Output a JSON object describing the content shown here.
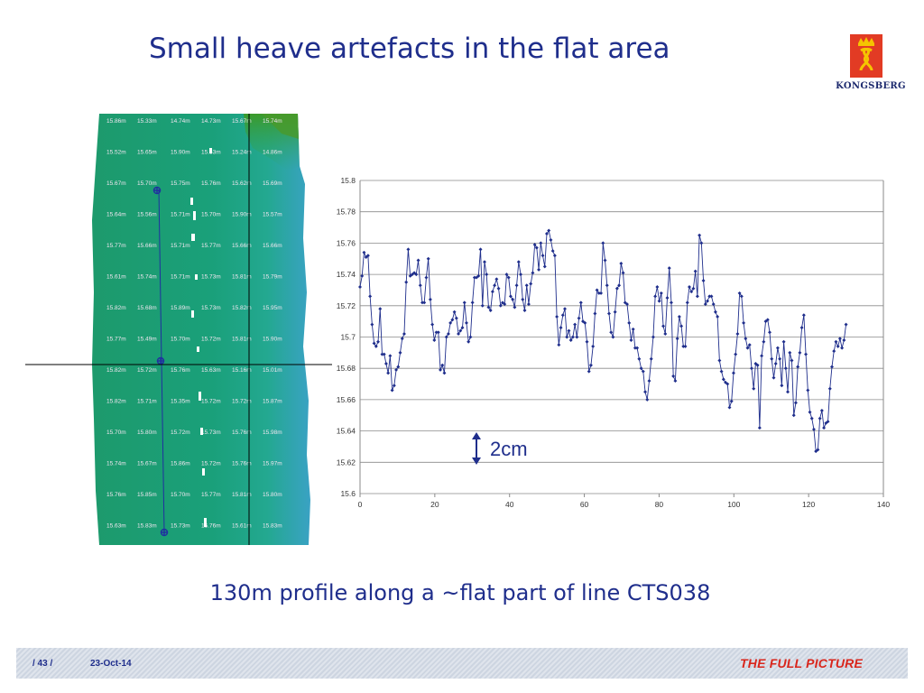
{
  "slide": {
    "title": "Small heave artefacts in the flat area",
    "caption": "130m profile along a ~flat part of line CTS038",
    "logo_text": "KONGSBERG",
    "brand_color": "#e23b24",
    "accent_color": "#1f2e8c"
  },
  "footer": {
    "page": "/ 43 /",
    "date": "23-Oct-14",
    "tagline": "THE FULL PICTURE"
  },
  "map": {
    "labels": [
      [
        "15.86m",
        "15.33m",
        "14.74m",
        "14.73m",
        "15.67m",
        "15.74m"
      ],
      [
        "15.52m",
        "15.65m",
        "15.90m",
        "15.53m",
        "15.24m",
        "14.86m"
      ],
      [
        "15.67m",
        "15.70m",
        "15.75m",
        "15.76m",
        "15.62m",
        "15.69m"
      ],
      [
        "15.64m",
        "15.56m",
        "15.71m",
        "15.70m",
        "15.90m",
        "15.57m"
      ],
      [
        "15.77m",
        "15.66m",
        "15.71m",
        "15.77m",
        "15.66m",
        "15.66m"
      ],
      [
        "15.61m",
        "15.74m",
        "15.71m",
        "15.73m",
        "15.81m",
        "15.79m"
      ],
      [
        "15.82m",
        "15.68m",
        "15.89m",
        "15.73m",
        "15.82m",
        "15.95m"
      ],
      [
        "15.77m",
        "15.49m",
        "15.70m",
        "15.72m",
        "15.81m",
        "15.90m"
      ],
      [
        "15.82m",
        "15.72m",
        "15.76m",
        "15.63m",
        "15.16m",
        "15.01m"
      ],
      [
        "15.82m",
        "15.71m",
        "15.35m",
        "15.72m",
        "15.72m",
        "15.87m"
      ],
      [
        "15.70m",
        "15.80m",
        "15.72m",
        "15.73m",
        "15.76m",
        "15.98m"
      ],
      [
        "15.74m",
        "15.67m",
        "15.86m",
        "15.72m",
        "15.76m",
        "15.97m"
      ],
      [
        "15.76m",
        "15.85m",
        "15.70m",
        "15.77m",
        "15.81m",
        "15.80m"
      ],
      [
        "15.63m",
        "15.83m",
        "15.73m",
        "15.76m",
        "15.61m",
        "15.83m"
      ]
    ]
  },
  "chart_data": {
    "type": "line",
    "title": "",
    "xlabel": "",
    "ylabel": "",
    "xlim": [
      0,
      140
    ],
    "ylim": [
      15.6,
      15.8
    ],
    "x_ticks": [
      0,
      20,
      40,
      60,
      80,
      100,
      120,
      140
    ],
    "y_ticks": [
      15.6,
      15.62,
      15.64,
      15.66,
      15.68,
      15.7,
      15.72,
      15.74,
      15.76,
      15.78,
      15.8
    ],
    "grid": "horizontal",
    "series_color": "#1f2e8c",
    "annotation": "2cm",
    "y_values": [
      15.732,
      15.739,
      15.754,
      15.751,
      15.752,
      15.726,
      15.708,
      15.696,
      15.694,
      15.697,
      15.718,
      15.689,
      15.689,
      15.683,
      15.677,
      15.688,
      15.666,
      15.669,
      15.679,
      15.681,
      15.69,
      15.699,
      15.702,
      15.735,
      15.756,
      15.739,
      15.74,
      15.741,
      15.74,
      15.749,
      15.733,
      15.722,
      15.722,
      15.738,
      15.75,
      15.724,
      15.708,
      15.698,
      15.703,
      15.703,
      15.679,
      15.682,
      15.677,
      15.7,
      15.702,
      15.709,
      15.711,
      15.716,
      15.712,
      15.702,
      15.704,
      15.706,
      15.722,
      15.709,
      15.697,
      15.7,
      15.722,
      15.738,
      15.738,
      15.739,
      15.756,
      15.72,
      15.748,
      15.74,
      15.719,
      15.717,
      15.729,
      15.733,
      15.737,
      15.731,
      15.72,
      15.722,
      15.721,
      15.74,
      15.738,
      15.726,
      15.724,
      15.719,
      15.733,
      15.748,
      15.74,
      15.724,
      15.717,
      15.733,
      15.721,
      15.734,
      15.741,
      15.759,
      15.757,
      15.743,
      15.76,
      15.752,
      15.745,
      15.766,
      15.768,
      15.762,
      15.755,
      15.752,
      15.713,
      15.695,
      15.706,
      15.714,
      15.718,
      15.7,
      15.704,
      15.698,
      15.7,
      15.708,
      15.7,
      15.712,
      15.722,
      15.71,
      15.709,
      15.697,
      15.678,
      15.682,
      15.694,
      15.715,
      15.73,
      15.728,
      15.728,
      15.76,
      15.749,
      15.733,
      15.715,
      15.703,
      15.7,
      15.716,
      15.731,
      15.733,
      15.747,
      15.741,
      15.722,
      15.721,
      15.709,
      15.698,
      15.705,
      15.693,
      15.693,
      15.686,
      15.68,
      15.678,
      15.665,
      15.66,
      15.672,
      15.686,
      15.7,
      15.726,
      15.732,
      15.723,
      15.728,
      15.707,
      15.702,
      15.725,
      15.744,
      15.722,
      15.675,
      15.672,
      15.699,
      15.713,
      15.707,
      15.694,
      15.694,
      15.722,
      15.732,
      15.729,
      15.731,
      15.742,
      15.726,
      15.765,
      15.76,
      15.736,
      15.721,
      15.723,
      15.726,
      15.726,
      15.721,
      15.716,
      15.713,
      15.685,
      15.678,
      15.673,
      15.671,
      15.67,
      15.655,
      15.659,
      15.677,
      15.689,
      15.702,
      15.728,
      15.726,
      15.709,
      15.699,
      15.693,
      15.695,
      15.68,
      15.667,
      15.683,
      15.682,
      15.642,
      15.688,
      15.697,
      15.71,
      15.711,
      15.703,
      15.686,
      15.674,
      15.683,
      15.693,
      15.686,
      15.669,
      15.697,
      15.68,
      15.665,
      15.69,
      15.685,
      15.65,
      15.658,
      15.681,
      15.69,
      15.706,
      15.714,
      15.689,
      15.666,
      15.652,
      15.648,
      15.641,
      15.627,
      15.628,
      15.648,
      15.653,
      15.642,
      15.645,
      15.646,
      15.667,
      15.681,
      15.691,
      15.697,
      15.694,
      15.699,
      15.693,
      15.698,
      15.708
    ]
  }
}
